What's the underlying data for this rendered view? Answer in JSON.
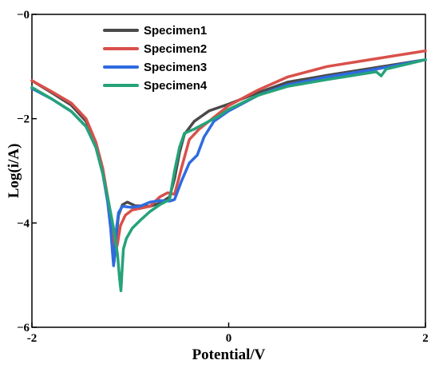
{
  "chart_data": {
    "type": "line",
    "title": "",
    "xlabel": "Potential/V",
    "ylabel": "Log(i/A)",
    "xlim": [
      -2,
      2
    ],
    "ylim": [
      -6,
      0
    ],
    "x_ticks": [
      -2,
      0,
      2
    ],
    "y_ticks": [
      0,
      -2,
      -4,
      -6
    ],
    "x_tick_labels": [
      "-2",
      "0",
      "2"
    ],
    "y_tick_labels": [
      "−0",
      "−2",
      "−4",
      "−6"
    ],
    "grid": false,
    "legend_position": "top-left",
    "series": [
      {
        "name": "Specimen1",
        "color": "#4a4a4a",
        "points": [
          [
            -2,
            -1.27
          ],
          [
            -1.8,
            -1.5
          ],
          [
            -1.6,
            -1.74
          ],
          [
            -1.45,
            -2.05
          ],
          [
            -1.35,
            -2.48
          ],
          [
            -1.28,
            -3.0
          ],
          [
            -1.23,
            -3.55
          ],
          [
            -1.195,
            -4.05
          ],
          [
            -1.175,
            -4.55
          ],
          [
            -1.165,
            -4.75
          ],
          [
            -1.155,
            -4.55
          ],
          [
            -1.14,
            -4.2
          ],
          [
            -1.12,
            -3.85
          ],
          [
            -1.08,
            -3.65
          ],
          [
            -1.03,
            -3.6
          ],
          [
            -0.95,
            -3.67
          ],
          [
            -0.8,
            -3.68
          ],
          [
            -0.7,
            -3.62
          ],
          [
            -0.6,
            -3.5
          ],
          [
            -0.55,
            -3.15
          ],
          [
            -0.5,
            -2.65
          ],
          [
            -0.45,
            -2.3
          ],
          [
            -0.35,
            -2.05
          ],
          [
            -0.2,
            -1.85
          ],
          [
            0,
            -1.72
          ],
          [
            0.3,
            -1.5
          ],
          [
            0.6,
            -1.3
          ],
          [
            1.0,
            -1.17
          ],
          [
            1.5,
            -1.02
          ],
          [
            2,
            -0.87
          ]
        ]
      },
      {
        "name": "Specimen2",
        "color": "#d9504a",
        "points": [
          [
            -2,
            -1.27
          ],
          [
            -1.8,
            -1.48
          ],
          [
            -1.6,
            -1.7
          ],
          [
            -1.45,
            -2.0
          ],
          [
            -1.35,
            -2.45
          ],
          [
            -1.28,
            -2.95
          ],
          [
            -1.23,
            -3.5
          ],
          [
            -1.19,
            -4.0
          ],
          [
            -1.17,
            -4.4
          ],
          [
            -1.15,
            -4.55
          ],
          [
            -1.13,
            -4.4
          ],
          [
            -1.1,
            -4.05
          ],
          [
            -1.05,
            -3.85
          ],
          [
            -0.98,
            -3.75
          ],
          [
            -0.9,
            -3.72
          ],
          [
            -0.8,
            -3.68
          ],
          [
            -0.7,
            -3.5
          ],
          [
            -0.62,
            -3.42
          ],
          [
            -0.55,
            -3.45
          ],
          [
            -0.48,
            -2.95
          ],
          [
            -0.4,
            -2.4
          ],
          [
            -0.3,
            -2.2
          ],
          [
            -0.2,
            -2.05
          ],
          [
            0,
            -1.75
          ],
          [
            0.3,
            -1.45
          ],
          [
            0.6,
            -1.2
          ],
          [
            1.0,
            -1.0
          ],
          [
            1.5,
            -0.85
          ],
          [
            2,
            -0.7
          ]
        ]
      },
      {
        "name": "Specimen3",
        "color": "#2f6be0",
        "points": [
          [
            -2,
            -1.42
          ],
          [
            -1.8,
            -1.62
          ],
          [
            -1.6,
            -1.86
          ],
          [
            -1.45,
            -2.15
          ],
          [
            -1.35,
            -2.55
          ],
          [
            -1.28,
            -3.05
          ],
          [
            -1.23,
            -3.6
          ],
          [
            -1.2,
            -4.1
          ],
          [
            -1.18,
            -4.6
          ],
          [
            -1.17,
            -4.82
          ],
          [
            -1.16,
            -4.6
          ],
          [
            -1.14,
            -4.1
          ],
          [
            -1.12,
            -3.8
          ],
          [
            -1.08,
            -3.68
          ],
          [
            -1.0,
            -3.7
          ],
          [
            -0.9,
            -3.68
          ],
          [
            -0.8,
            -3.6
          ],
          [
            -0.7,
            -3.57
          ],
          [
            -0.6,
            -3.58
          ],
          [
            -0.55,
            -3.55
          ],
          [
            -0.48,
            -3.2
          ],
          [
            -0.4,
            -2.85
          ],
          [
            -0.32,
            -2.7
          ],
          [
            -0.25,
            -2.35
          ],
          [
            -0.15,
            -2.05
          ],
          [
            0,
            -1.85
          ],
          [
            0.3,
            -1.55
          ],
          [
            0.6,
            -1.35
          ],
          [
            1.0,
            -1.2
          ],
          [
            1.5,
            -1.05
          ],
          [
            2,
            -0.87
          ]
        ]
      },
      {
        "name": "Specimen4",
        "color": "#25a37a",
        "points": [
          [
            -2,
            -1.4
          ],
          [
            -1.8,
            -1.62
          ],
          [
            -1.6,
            -1.86
          ],
          [
            -1.45,
            -2.15
          ],
          [
            -1.35,
            -2.55
          ],
          [
            -1.28,
            -3.05
          ],
          [
            -1.22,
            -3.6
          ],
          [
            -1.17,
            -4.1
          ],
          [
            -1.13,
            -4.6
          ],
          [
            -1.11,
            -5.05
          ],
          [
            -1.095,
            -5.3
          ],
          [
            -1.085,
            -4.95
          ],
          [
            -1.07,
            -4.5
          ],
          [
            -1.04,
            -4.3
          ],
          [
            -0.98,
            -4.1
          ],
          [
            -0.9,
            -3.95
          ],
          [
            -0.8,
            -3.78
          ],
          [
            -0.7,
            -3.65
          ],
          [
            -0.6,
            -3.55
          ],
          [
            -0.55,
            -3.0
          ],
          [
            -0.5,
            -2.55
          ],
          [
            -0.45,
            -2.28
          ],
          [
            -0.35,
            -2.2
          ],
          [
            -0.25,
            -2.1
          ],
          [
            -0.1,
            -1.95
          ],
          [
            0,
            -1.82
          ],
          [
            0.3,
            -1.55
          ],
          [
            0.6,
            -1.38
          ],
          [
            1.0,
            -1.25
          ],
          [
            1.5,
            -1.1
          ],
          [
            1.55,
            -1.18
          ],
          [
            1.6,
            -1.05
          ],
          [
            2,
            -0.87
          ]
        ]
      }
    ]
  }
}
